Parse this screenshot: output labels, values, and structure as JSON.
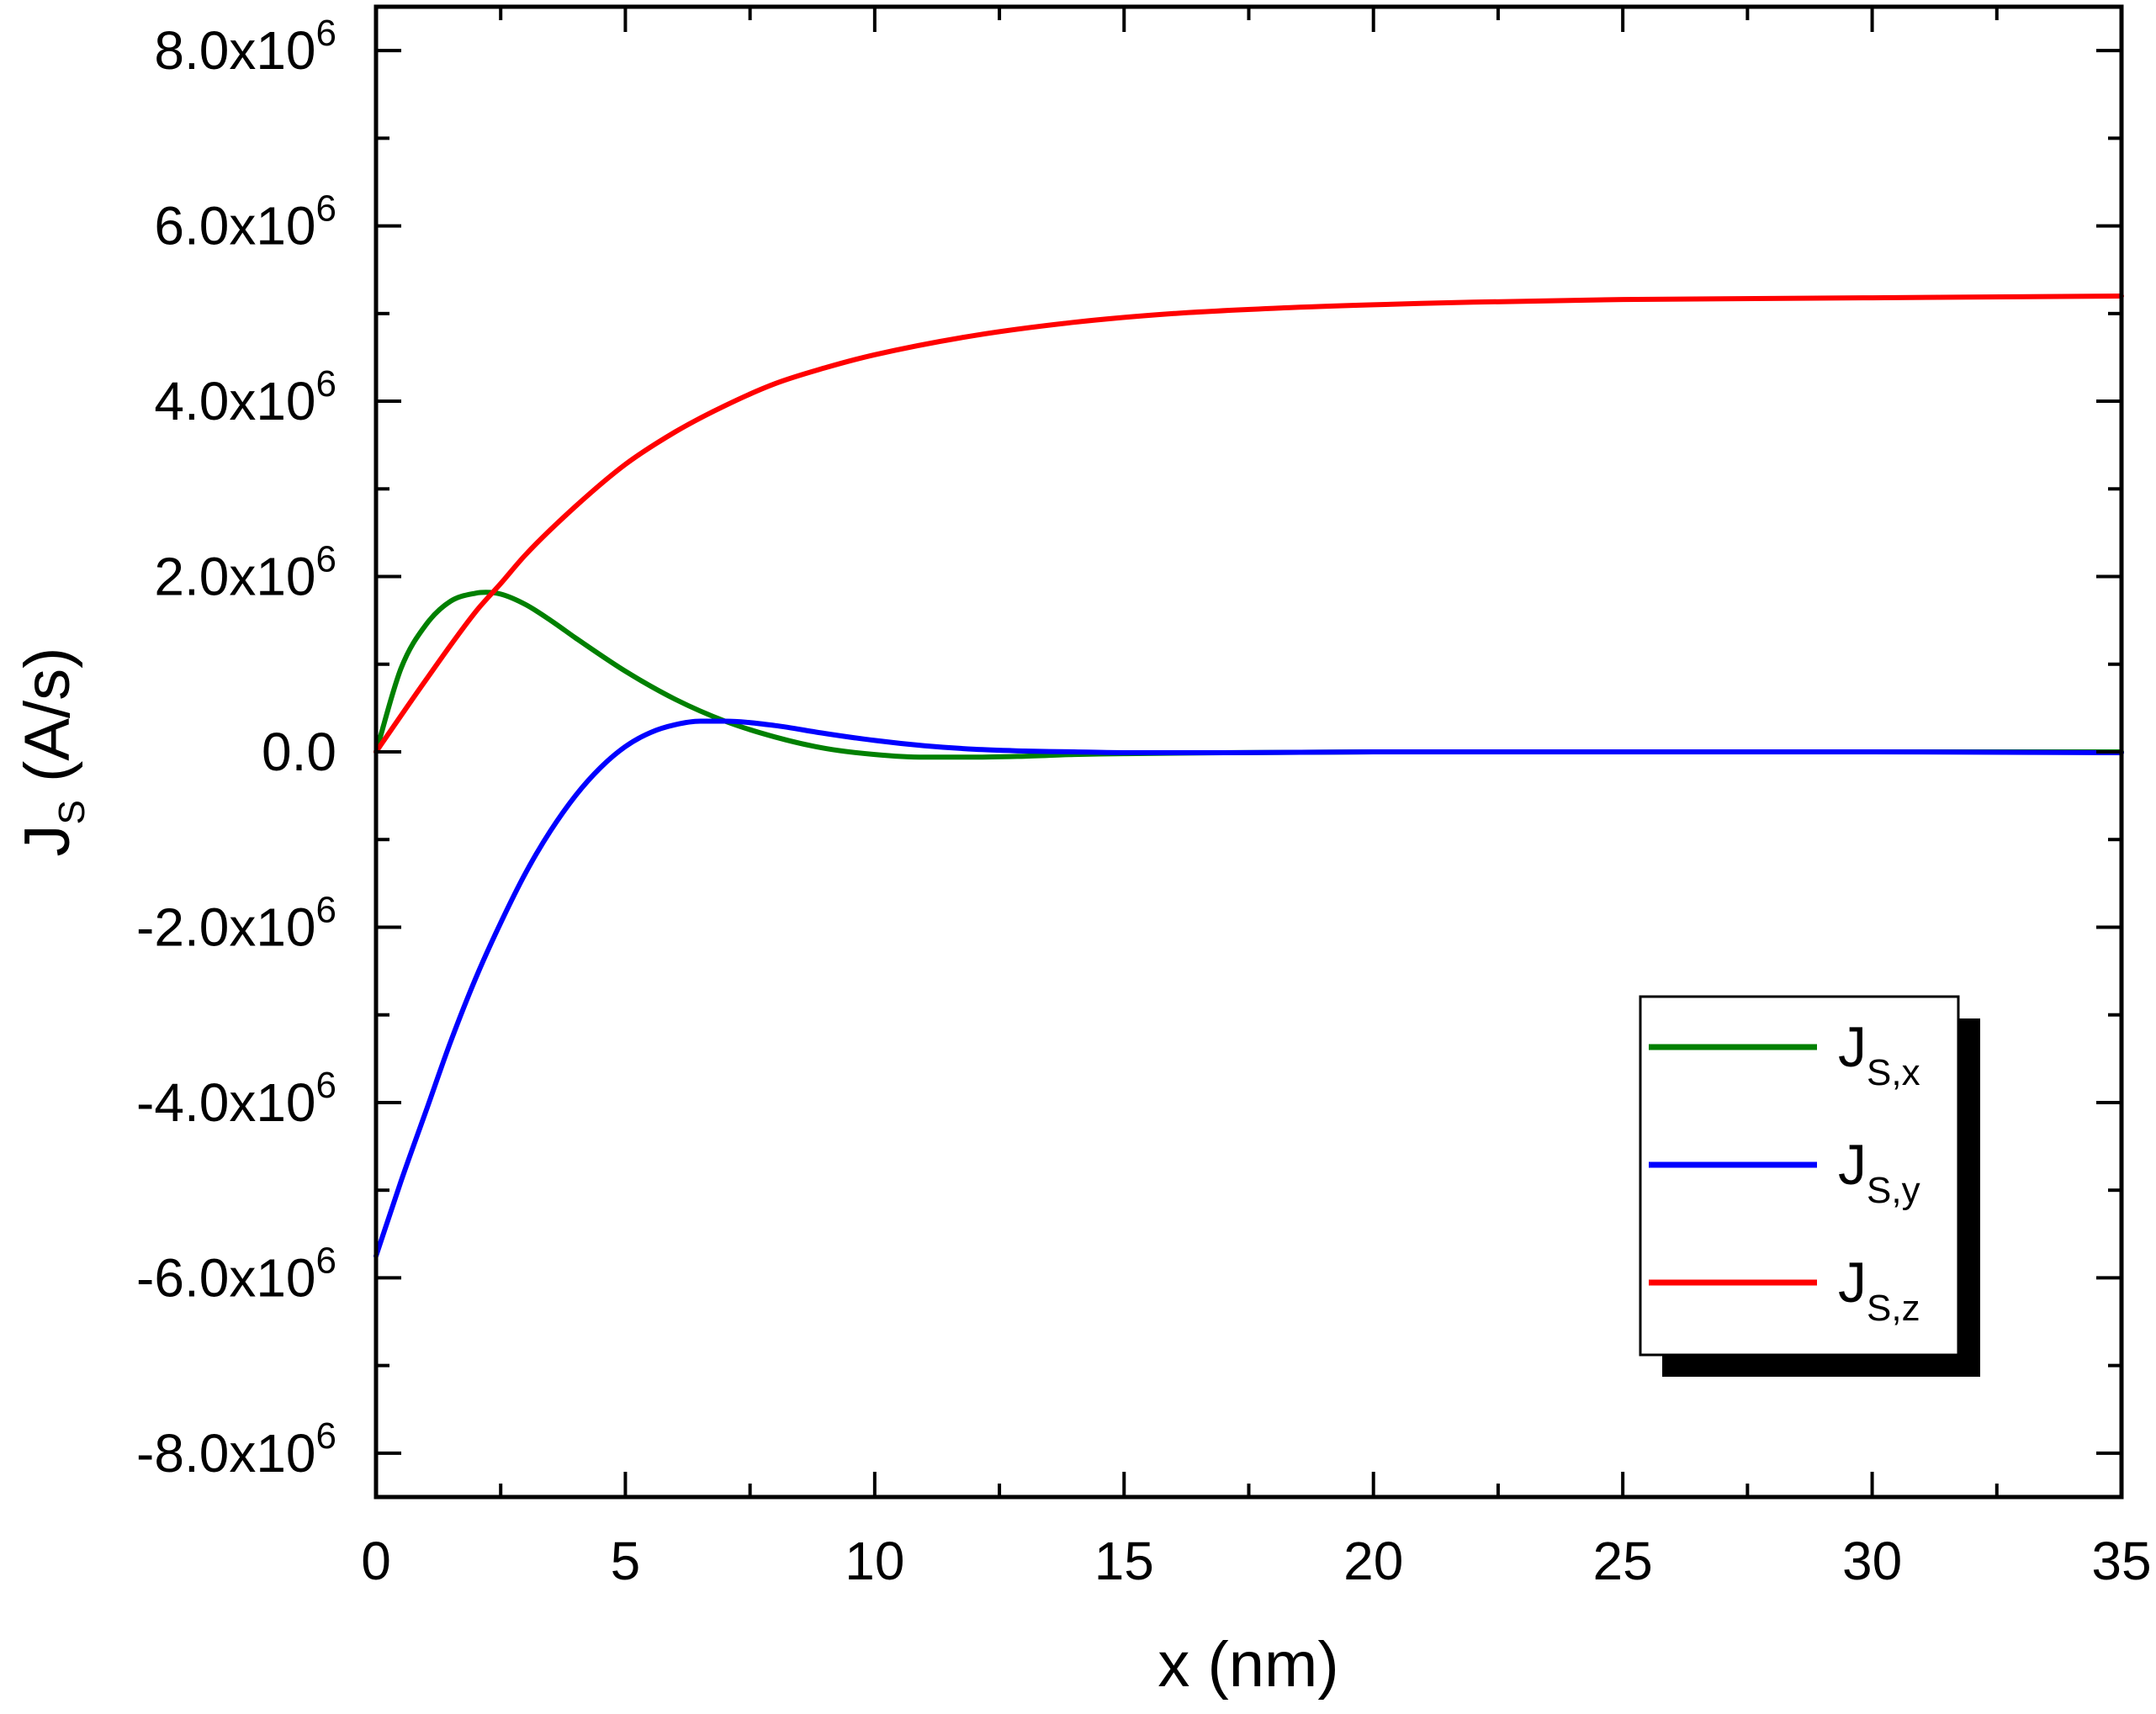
{
  "chart_data": {
    "type": "line",
    "xlabel": "x (nm)",
    "ylabel": {
      "main": "J",
      "sub": "S",
      "unit": " (A/s)"
    },
    "xlim": [
      0,
      35
    ],
    "ylim": [
      -8.5,
      8.5
    ],
    "y_scale_exponent": 6,
    "grid": false,
    "x_ticks": [
      0,
      5,
      10,
      15,
      20,
      25,
      30,
      35
    ],
    "x_tick_labels": [
      "0",
      "5",
      "10",
      "15",
      "20",
      "25",
      "30",
      "35"
    ],
    "y_ticks": [
      -8,
      -6,
      -4,
      -2,
      0,
      2,
      4,
      6,
      8
    ],
    "y_tick_labels": [
      {
        "base": "-8.0x10",
        "exp": "6"
      },
      {
        "base": "-6.0x10",
        "exp": "6"
      },
      {
        "base": "-4.0x10",
        "exp": "6"
      },
      {
        "base": "-2.0x10",
        "exp": "6"
      },
      {
        "base": "0.0",
        "exp": ""
      },
      {
        "base": "2.0x10",
        "exp": "6"
      },
      {
        "base": "4.0x10",
        "exp": "6"
      },
      {
        "base": "6.0x10",
        "exp": "6"
      },
      {
        "base": "8.0x10",
        "exp": "6"
      }
    ],
    "legend_position": "bottom-right",
    "series": [
      {
        "name": "Js,x",
        "label": {
          "main": "J",
          "sub": "S,x"
        },
        "color": "#008000",
        "x": [
          0,
          0.5,
          1,
          1.5,
          2,
          2.2,
          2.5,
          3,
          3.5,
          4,
          5,
          6,
          7,
          8,
          9,
          10,
          11,
          12,
          13,
          14,
          15,
          17,
          20,
          25,
          30,
          35
        ],
        "y": [
          0,
          0.95,
          1.45,
          1.72,
          1.81,
          1.82,
          1.8,
          1.68,
          1.5,
          1.3,
          0.92,
          0.6,
          0.35,
          0.17,
          0.04,
          -0.03,
          -0.06,
          -0.06,
          -0.05,
          -0.03,
          -0.02,
          -0.01,
          0,
          0,
          0,
          0
        ]
      },
      {
        "name": "Js,y",
        "label": {
          "main": "J",
          "sub": "S,y"
        },
        "color": "#0000ff",
        "x": [
          0,
          0.5,
          1,
          1.5,
          2,
          2.5,
          3,
          3.5,
          4,
          4.5,
          5,
          5.5,
          6,
          6.5,
          7,
          8,
          9,
          10,
          11,
          12,
          13,
          14,
          15,
          17,
          20,
          25,
          30,
          35
        ],
        "y": [
          -5.75,
          -4.9,
          -4.1,
          -3.3,
          -2.58,
          -1.95,
          -1.38,
          -0.9,
          -0.5,
          -0.18,
          0.06,
          0.22,
          0.31,
          0.35,
          0.35,
          0.3,
          0.21,
          0.13,
          0.07,
          0.03,
          0.01,
          0,
          -0.01,
          -0.01,
          0,
          0,
          0,
          -0.01
        ]
      },
      {
        "name": "Js,z",
        "label": {
          "main": "J",
          "sub": "S,z"
        },
        "color": "#ff0000",
        "x": [
          0,
          1,
          2,
          2.5,
          3,
          4,
          5,
          6,
          7,
          8,
          9,
          10,
          12,
          14,
          16,
          18,
          20,
          22,
          25,
          30,
          35
        ],
        "y": [
          0,
          0.82,
          1.6,
          1.92,
          2.25,
          2.8,
          3.28,
          3.65,
          3.95,
          4.2,
          4.38,
          4.53,
          4.75,
          4.9,
          5.0,
          5.06,
          5.1,
          5.13,
          5.16,
          5.18,
          5.2
        ]
      }
    ]
  }
}
